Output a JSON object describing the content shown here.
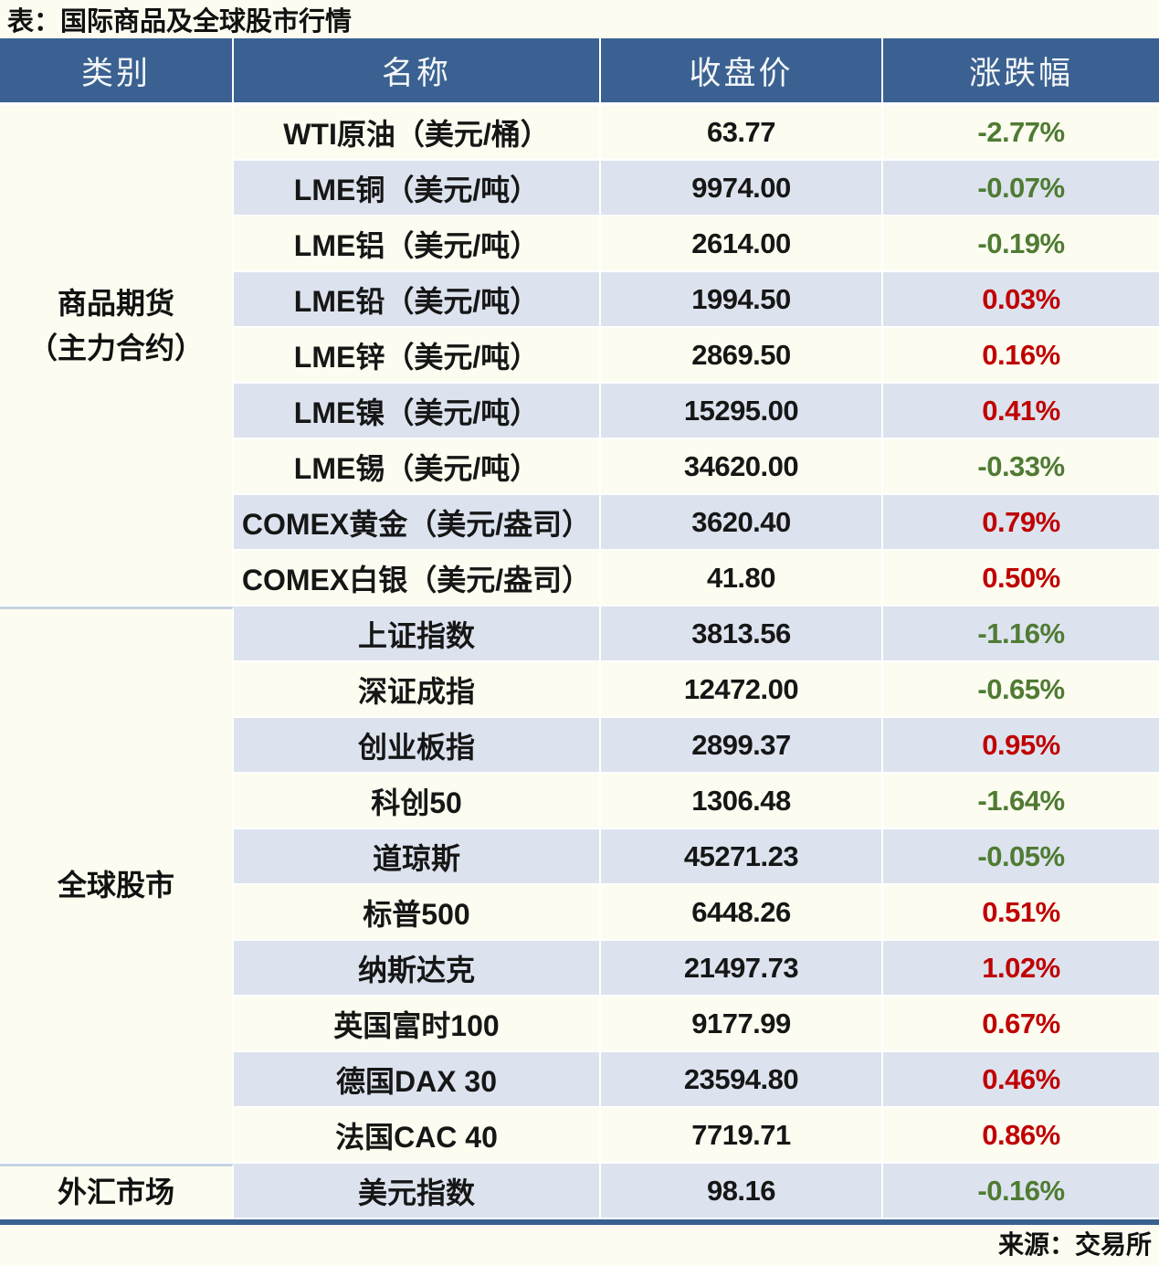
{
  "title": "表：国际商品及全球股市行情",
  "footer_source": "来源：交易所",
  "chart_data": {
    "type": "table",
    "title": "表：国际商品及全球股市行情",
    "columns": [
      "类别",
      "名称",
      "收盘价",
      "涨跌幅"
    ],
    "legend": {
      "up_color_meaning": "上涨(红)",
      "down_color_meaning": "下跌(绿)"
    },
    "sections": [
      {
        "category_lines": [
          "商品期货",
          "（主力合约）"
        ],
        "rows": [
          {
            "name": "WTI原油（美元/桶）",
            "close": "63.77",
            "change": "-2.77%",
            "direction": "down"
          },
          {
            "name": "LME铜（美元/吨）",
            "close": "9974.00",
            "change": "-0.07%",
            "direction": "down"
          },
          {
            "name": "LME铝（美元/吨）",
            "close": "2614.00",
            "change": "-0.19%",
            "direction": "down"
          },
          {
            "name": "LME铅（美元/吨）",
            "close": "1994.50",
            "change": "0.03%",
            "direction": "up"
          },
          {
            "name": "LME锌（美元/吨）",
            "close": "2869.50",
            "change": "0.16%",
            "direction": "up"
          },
          {
            "name": "LME镍（美元/吨）",
            "close": "15295.00",
            "change": "0.41%",
            "direction": "up"
          },
          {
            "name": "LME锡（美元/吨）",
            "close": "34620.00",
            "change": "-0.33%",
            "direction": "down"
          },
          {
            "name": "COMEX黄金（美元/盎司）",
            "close": "3620.40",
            "change": "0.79%",
            "direction": "up"
          },
          {
            "name": "COMEX白银（美元/盎司）",
            "close": "41.80",
            "change": "0.50%",
            "direction": "up"
          }
        ]
      },
      {
        "category_lines": [
          "全球股市"
        ],
        "rows": [
          {
            "name": "上证指数",
            "close": "3813.56",
            "change": "-1.16%",
            "direction": "down"
          },
          {
            "name": "深证成指",
            "close": "12472.00",
            "change": "-0.65%",
            "direction": "down"
          },
          {
            "name": "创业板指",
            "close": "2899.37",
            "change": "0.95%",
            "direction": "up"
          },
          {
            "name": "科创50",
            "close": "1306.48",
            "change": "-1.64%",
            "direction": "down"
          },
          {
            "name": "道琼斯",
            "close": "45271.23",
            "change": "-0.05%",
            "direction": "down"
          },
          {
            "name": "标普500",
            "close": "6448.26",
            "change": "0.51%",
            "direction": "up"
          },
          {
            "name": "纳斯达克",
            "close": "21497.73",
            "change": "1.02%",
            "direction": "up"
          },
          {
            "name": "英国富时100",
            "close": "9177.99",
            "change": "0.67%",
            "direction": "up"
          },
          {
            "name": "德国DAX 30",
            "close": "23594.80",
            "change": "0.46%",
            "direction": "up"
          },
          {
            "name": "法国CAC 40",
            "close": "7719.71",
            "change": "0.86%",
            "direction": "up"
          }
        ]
      },
      {
        "category_lines": [
          "外汇市场"
        ],
        "rows": [
          {
            "name": "美元指数",
            "close": "98.16",
            "change": "-0.16%",
            "direction": "down"
          }
        ]
      }
    ]
  },
  "colors": {
    "header_bg": "#3A6191",
    "row_cream": "#FCFCF0",
    "row_blue": "#DCE3EE",
    "up_red": "#C00000",
    "down_green": "#4F7B33",
    "bottom_rule": "#38618F",
    "section_divider": "#C6D4E2"
  }
}
